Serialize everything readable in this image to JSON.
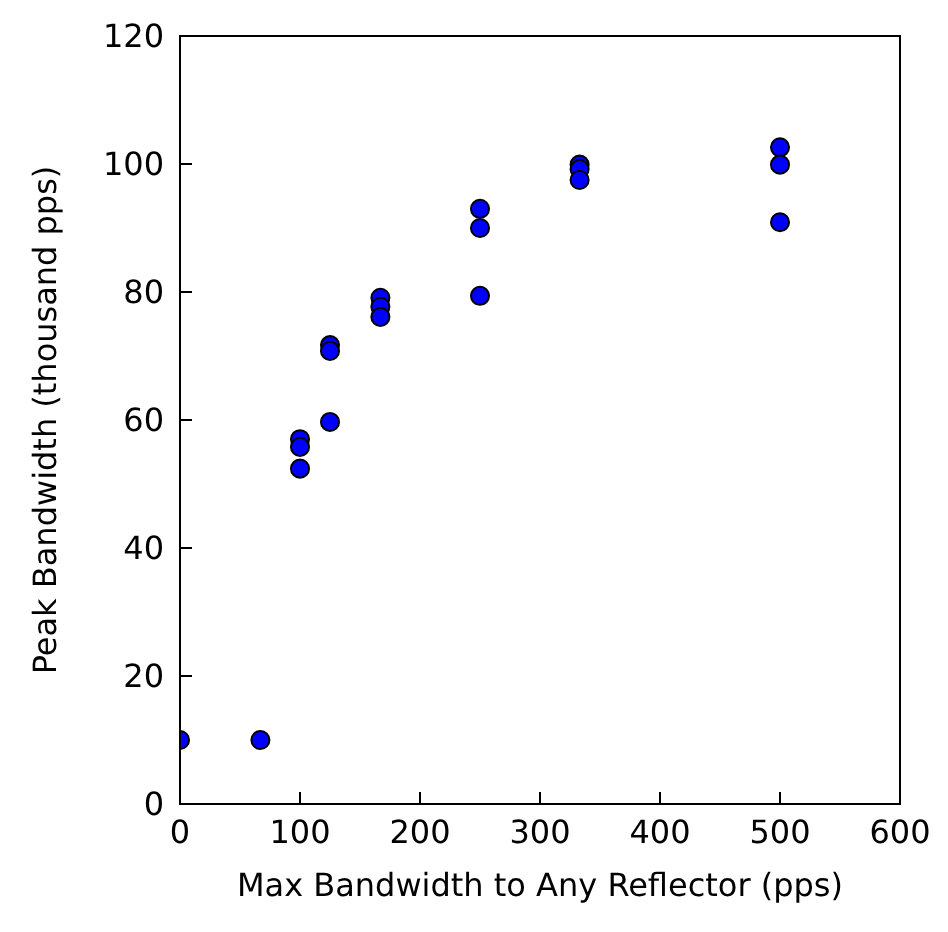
{
  "chart_data": {
    "type": "scatter",
    "xlabel": "Max Bandwidth to Any Reflector (pps)",
    "ylabel": "Peak Bandwidth (thousand pps)",
    "series": [
      {
        "color": "#0000ff",
        "x": [
          0,
          67,
          100,
          100,
          100,
          125,
          125,
          125,
          167,
          167,
          167,
          250,
          250,
          250,
          333,
          333,
          333,
          500,
          500,
          500
        ],
        "values": [
          10,
          10,
          57,
          55.8,
          52.4,
          71.7,
          70.8,
          59.7,
          79.1,
          77.7,
          76.1,
          93,
          90,
          79.4,
          99.9,
          99.2,
          97.5,
          102.6,
          99.9,
          90.9
        ]
      }
    ],
    "xlim": [
      0,
      600
    ],
    "xticks": [
      0,
      100,
      200,
      300,
      400,
      500,
      600
    ],
    "ylim": [
      0,
      120
    ],
    "yticks": [
      0,
      20,
      40,
      60,
      80,
      100,
      120
    ],
    "marker": "circle"
  }
}
